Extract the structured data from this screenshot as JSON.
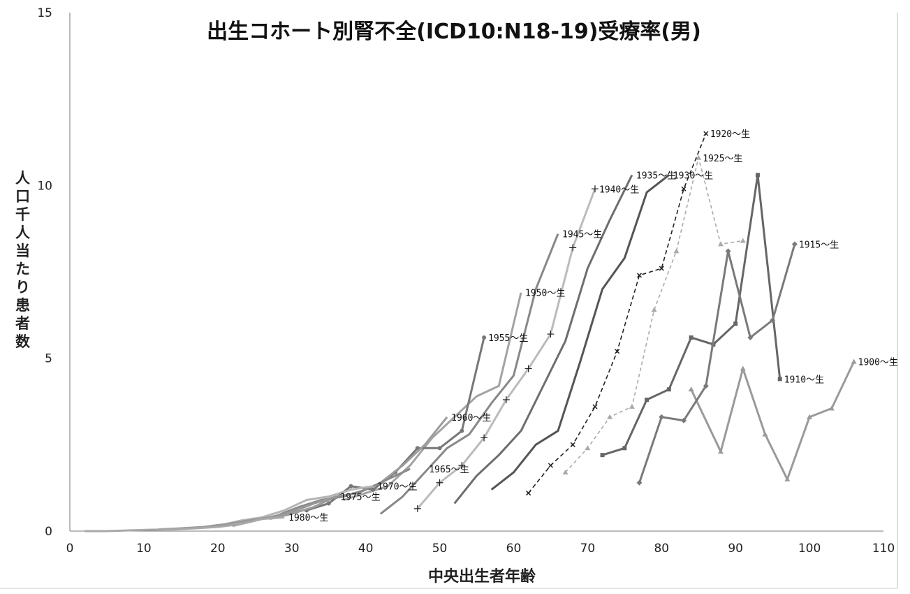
{
  "chart_data": {
    "type": "line",
    "title": "出生コホート別腎不全(ICD10:N18-19)受療率(男)",
    "xlabel": "中央出生者年齢",
    "ylabel": "人口千人当たり患者数",
    "xlim": [
      0,
      110
    ],
    "ylim": [
      0,
      15
    ],
    "xticks": [
      0,
      10,
      20,
      30,
      40,
      50,
      60,
      70,
      80,
      90,
      100,
      110
    ],
    "yticks": [
      0,
      5,
      10,
      15
    ],
    "grid": false,
    "legend": "inline labels at series ends",
    "series": [
      {
        "name": "1900～生",
        "color": "#9a9a9a",
        "marker": "triangle",
        "x": [
          84,
          88,
          91,
          94,
          97,
          100,
          103,
          106
        ],
        "y": [
          4.1,
          2.3,
          4.7,
          2.8,
          1.5,
          3.3,
          3.55,
          4.9
        ],
        "label_at": [
          106,
          4.9
        ]
      },
      {
        "name": "1910～生",
        "color": "#666666",
        "marker": "square",
        "x": [
          72,
          75,
          78,
          81,
          84,
          87,
          90,
          93,
          96
        ],
        "y": [
          2.2,
          2.4,
          3.8,
          4.1,
          5.6,
          5.4,
          6.0,
          10.3,
          4.4
        ],
        "label_at": [
          96,
          4.4
        ]
      },
      {
        "name": "1915～生",
        "color": "#7a7a7a",
        "marker": "diamond",
        "x": [
          77,
          80,
          83,
          86,
          89,
          92,
          95,
          98
        ],
        "y": [
          1.4,
          3.3,
          3.2,
          4.2,
          8.1,
          5.6,
          6.1,
          8.3
        ],
        "label_at": [
          98,
          8.3
        ]
      },
      {
        "name": "1920～生",
        "color": "#222222",
        "marker": "cross",
        "dash": "6,4",
        "x": [
          62,
          65,
          68,
          71,
          74,
          77,
          80,
          83,
          86
        ],
        "y": [
          1.1,
          1.9,
          2.5,
          3.6,
          5.2,
          7.4,
          7.6,
          9.9,
          11.5
        ],
        "label_at": [
          86,
          11.5
        ]
      },
      {
        "name": "1925～生",
        "color": "#aaaaaa",
        "marker": "triangle",
        "dash": "5,4",
        "x": [
          67,
          70,
          73,
          76,
          79,
          82,
          85,
          88,
          91
        ],
        "y": [
          1.7,
          2.4,
          3.3,
          3.6,
          6.4,
          8.1,
          10.8,
          8.3,
          8.4
        ],
        "label_at": [
          85,
          10.8
        ]
      },
      {
        "name": "1930～生",
        "color": "#555555",
        "marker": "none",
        "x": [
          57,
          60,
          63,
          66,
          69,
          72,
          75,
          78,
          81
        ],
        "y": [
          1.2,
          1.7,
          2.5,
          2.9,
          4.9,
          7.0,
          7.9,
          9.8,
          10.3
        ],
        "label_at": [
          81,
          10.3
        ]
      },
      {
        "name": "1935～生",
        "color": "#6e6e6e",
        "marker": "none",
        "x": [
          52,
          55,
          58,
          61,
          64,
          67,
          70,
          73,
          76
        ],
        "y": [
          0.8,
          1.6,
          2.2,
          2.9,
          4.2,
          5.5,
          7.6,
          9.0,
          10.3
        ],
        "label_at": [
          76,
          10.3
        ]
      },
      {
        "name": "1940～生",
        "color": "#bbbbbb",
        "marker": "plus",
        "x": [
          47,
          50,
          53,
          56,
          59,
          62,
          65,
          68,
          71
        ],
        "y": [
          0.65,
          1.4,
          1.9,
          2.7,
          3.8,
          4.7,
          5.7,
          8.2,
          9.9
        ],
        "label_at": [
          71,
          9.9
        ]
      },
      {
        "name": "1945～生",
        "color": "#888888",
        "marker": "none",
        "x": [
          42,
          45,
          48,
          51,
          54,
          57,
          60,
          63,
          66
        ],
        "y": [
          0.5,
          1.0,
          1.7,
          2.4,
          2.8,
          3.7,
          4.5,
          7.0,
          8.6
        ],
        "label_at": [
          66,
          8.6
        ]
      },
      {
        "name": "1950～生",
        "color": "#a3a3a3",
        "marker": "none",
        "x": [
          37,
          40,
          43,
          46,
          49,
          52,
          55,
          58,
          61
        ],
        "y": [
          0.9,
          1.1,
          1.3,
          1.9,
          2.7,
          3.3,
          3.9,
          4.2,
          6.9
        ],
        "label_at": [
          61,
          6.9
        ]
      },
      {
        "name": "1955～生",
        "color": "#777777",
        "marker": "circle",
        "x": [
          32,
          35,
          38,
          41,
          44,
          47,
          50,
          53,
          56
        ],
        "y": [
          0.6,
          0.8,
          1.3,
          1.2,
          1.7,
          2.4,
          2.4,
          2.9,
          5.6
        ],
        "label_at": [
          56,
          5.6
        ]
      },
      {
        "name": "1960～生",
        "color": "#9c9c9c",
        "marker": "none",
        "x": [
          27,
          30,
          33,
          36,
          39,
          42,
          45,
          48,
          51
        ],
        "y": [
          0.35,
          0.5,
          0.7,
          1.0,
          1.1,
          1.4,
          1.9,
          2.5,
          3.3
        ],
        "label_at": [
          51,
          3.3
        ]
      },
      {
        "name": "1965～生",
        "color": "#8a8a8a",
        "marker": "none",
        "x": [
          22,
          25,
          28,
          31,
          34,
          37,
          40,
          43,
          46
        ],
        "y": [
          0.15,
          0.3,
          0.45,
          0.7,
          0.9,
          1.0,
          1.2,
          1.5,
          1.8
        ],
        "label_at": [
          48,
          1.8
        ]
      },
      {
        "name": "1970～生",
        "color": "#b5b5b5",
        "marker": "none",
        "x": [
          17,
          20,
          23,
          26,
          29,
          32,
          35,
          38,
          41
        ],
        "y": [
          0.1,
          0.15,
          0.3,
          0.4,
          0.6,
          0.9,
          1.0,
          1.2,
          1.3
        ],
        "label_at": [
          41,
          1.3
        ]
      },
      {
        "name": "1975～生",
        "color": "#999999",
        "marker": "none",
        "x": [
          12,
          15,
          18,
          21,
          24,
          27,
          30,
          33,
          36
        ],
        "y": [
          0.05,
          0.08,
          0.12,
          0.2,
          0.3,
          0.4,
          0.55,
          0.8,
          1.0
        ],
        "label_at": [
          36,
          1.0
        ]
      },
      {
        "name": "1980～生",
        "color": "#a8a8a8",
        "marker": "none",
        "x": [
          2,
          5,
          8,
          11,
          14,
          17,
          20,
          23,
          26,
          29
        ],
        "y": [
          0.0,
          0.0,
          0.02,
          0.04,
          0.05,
          0.08,
          0.12,
          0.2,
          0.35,
          0.4
        ],
        "label_at": [
          29,
          0.4
        ]
      }
    ]
  }
}
